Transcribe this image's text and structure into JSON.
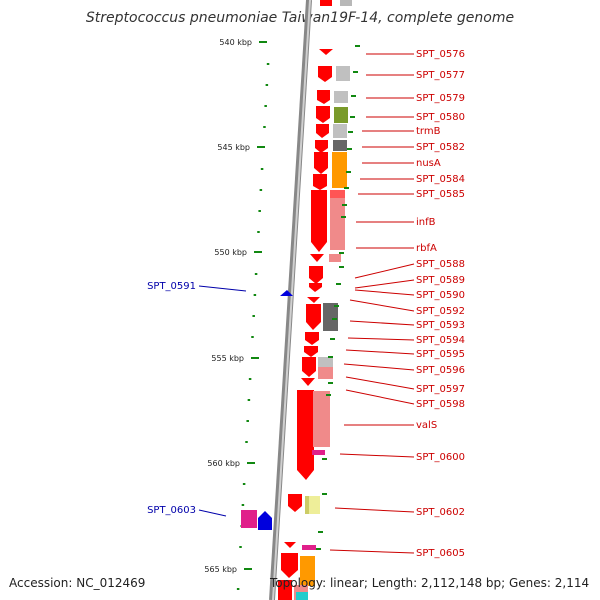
{
  "title": "Streptococcus pneumoniae Taiwan19F-14, complete genome",
  "accession": "Accession: NC_012469",
  "summary": "Topology: linear; Length: 2,112,148 bp; Genes: 2,114",
  "scale_ticks": [
    "540 kbp",
    "545 kbp",
    "550 kbp",
    "555 kbp",
    "560 kbp",
    "565 kbp"
  ],
  "right_genes": [
    "SPT_0576",
    "SPT_0577",
    "SPT_0579",
    "SPT_0580",
    "trmB",
    "SPT_0582",
    "nusA",
    "SPT_0584",
    "SPT_0585",
    "infB",
    "rbfA",
    "SPT_0588",
    "SPT_0589",
    "SPT_0590",
    "SPT_0592",
    "SPT_0593",
    "SPT_0594",
    "SPT_0595",
    "SPT_0596",
    "SPT_0597",
    "SPT_0598",
    "valS",
    "SPT_0600",
    "SPT_0602",
    "SPT_0605"
  ],
  "left_genes": [
    "SPT_0591",
    "SPT_0603"
  ],
  "colors": {
    "strand_red": "#ff0000",
    "pink": "#f08a8a",
    "grey": "#b8b8b8",
    "dark_grey": "#666666",
    "olive": "#7a9a2a",
    "orange": "#ff9900",
    "magenta": "#e0208a",
    "blue": "#0000dd",
    "yellow": "#eeee99",
    "cyan": "#22cccc",
    "tick_green": "#118811",
    "label_red": "#cc0000",
    "label_blue": "#0000aa"
  }
}
